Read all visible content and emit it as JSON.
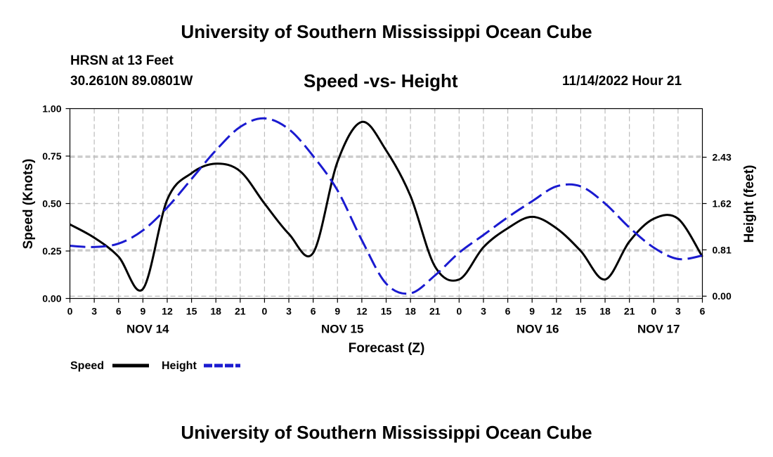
{
  "header": {
    "title": "University of Southern Mississippi Ocean Cube",
    "station": "HRSN at 13 Feet",
    "coordinates": "30.2610N  89.0801W",
    "timestamp": "11/14/2022 Hour 21"
  },
  "footer": {
    "title": "University of Southern Mississippi Ocean Cube"
  },
  "chart_data": {
    "type": "line",
    "title": "Speed -vs- Height",
    "xlabel": "Forecast (Z)",
    "ylabel": "Speed (Knots)",
    "y2label": "Height (feet)",
    "xlim": [
      0,
      78
    ],
    "ylim": [
      0,
      1.0
    ],
    "y2lim": [
      -0.04,
      3.28
    ],
    "x_tick_step_hours": 3,
    "x_tick_labels": [
      "0",
      "3",
      "6",
      "9",
      "12",
      "15",
      "18",
      "21",
      "0",
      "3",
      "6",
      "9",
      "12",
      "15",
      "18",
      "21",
      "0",
      "3",
      "6",
      "9",
      "12",
      "15",
      "18",
      "21",
      "0",
      "3",
      "6"
    ],
    "day_labels": [
      {
        "text": "NOV 14",
        "hour": 9.6
      },
      {
        "text": "NOV 15",
        "hour": 33.6
      },
      {
        "text": "NOV 16",
        "hour": 57.7
      },
      {
        "text": "NOV 17",
        "hour": 72.6
      }
    ],
    "y_ticks": [
      0,
      0.25,
      0.5,
      0.75,
      1.0
    ],
    "y_tick_labels": [
      "0.00",
      "0.25",
      "0.50",
      "0.75",
      "1.00"
    ],
    "y2_ticks": [
      0,
      0.81,
      1.62,
      2.43
    ],
    "y2_tick_labels": [
      "0.00",
      "0.81",
      "1.62",
      "2.43"
    ],
    "grid": true,
    "legend": [
      "Speed",
      "Height"
    ],
    "legend_position": "bottom-left",
    "series": [
      {
        "name": "Speed",
        "axis": "left",
        "color": "#000000",
        "style": "solid",
        "x": [
          0,
          3,
          6,
          9,
          12,
          15,
          18,
          21,
          24,
          27,
          30,
          33,
          36,
          39,
          42,
          45,
          48,
          51,
          54,
          57,
          60,
          63,
          66,
          69,
          72,
          75,
          78
        ],
        "y": [
          0.39,
          0.32,
          0.22,
          0.05,
          0.52,
          0.66,
          0.71,
          0.67,
          0.5,
          0.34,
          0.24,
          0.72,
          0.93,
          0.78,
          0.54,
          0.17,
          0.1,
          0.27,
          0.37,
          0.43,
          0.37,
          0.25,
          0.1,
          0.3,
          0.42,
          0.42,
          0.22
        ]
      },
      {
        "name": "Height",
        "axis": "right",
        "color": "#1a1ad0",
        "style": "dashed",
        "x": [
          0,
          3,
          6,
          9,
          12,
          15,
          18,
          21,
          24,
          27,
          30,
          33,
          36,
          39,
          42,
          45,
          48,
          51,
          54,
          57,
          60,
          63,
          66,
          69,
          72,
          75,
          78
        ],
        "y": [
          0.88,
          0.86,
          0.92,
          1.15,
          1.55,
          2.05,
          2.55,
          2.96,
          3.11,
          2.92,
          2.45,
          1.85,
          0.98,
          0.22,
          0.05,
          0.36,
          0.76,
          1.07,
          1.38,
          1.66,
          1.92,
          1.92,
          1.62,
          1.2,
          0.85,
          0.65,
          0.71
        ]
      }
    ]
  }
}
